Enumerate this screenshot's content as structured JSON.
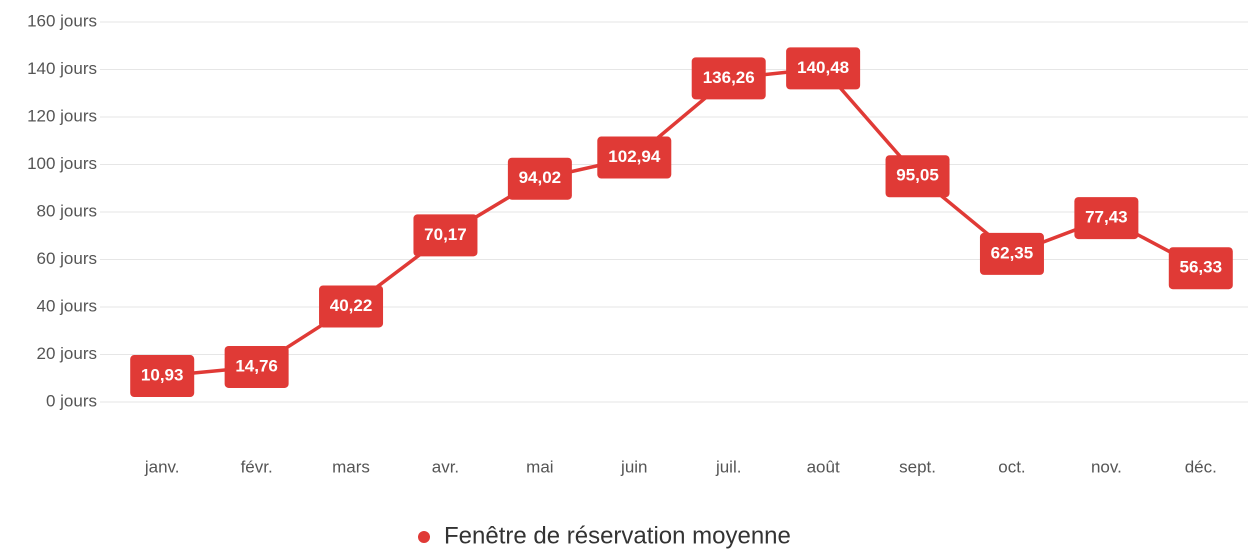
{
  "chart_data": {
    "type": "line",
    "categories": [
      "janv.",
      "févr.",
      "mars",
      "avr.",
      "mai",
      "juin",
      "juil.",
      "août",
      "sept.",
      "oct.",
      "nov.",
      "déc."
    ],
    "series": [
      {
        "name": "Fenêtre de réservation moyenne",
        "color": "#e03a36",
        "values": [
          10.93,
          14.76,
          40.22,
          70.17,
          94.02,
          102.94,
          136.26,
          140.48,
          95.05,
          62.35,
          77.43,
          56.33
        ],
        "value_labels": [
          "10,93",
          "14,76",
          "40,22",
          "70,17",
          "94,02",
          "102,94",
          "136,26",
          "140,48",
          "95,05",
          "62,35",
          "77,43",
          "56,33"
        ]
      }
    ],
    "ylim": [
      0,
      160
    ],
    "yticks": [
      {
        "value": 0,
        "label": "0 jours"
      },
      {
        "value": 20,
        "label": "20 jours"
      },
      {
        "value": 40,
        "label": "40 jours"
      },
      {
        "value": 60,
        "label": "60 jours"
      },
      {
        "value": 80,
        "label": "80 jours"
      },
      {
        "value": 100,
        "label": "100 jours"
      },
      {
        "value": 120,
        "label": "120 jours"
      },
      {
        "value": 140,
        "label": "140 jours"
      },
      {
        "value": 160,
        "label": "160 jours"
      }
    ],
    "grid": true,
    "legend": "bottom"
  }
}
